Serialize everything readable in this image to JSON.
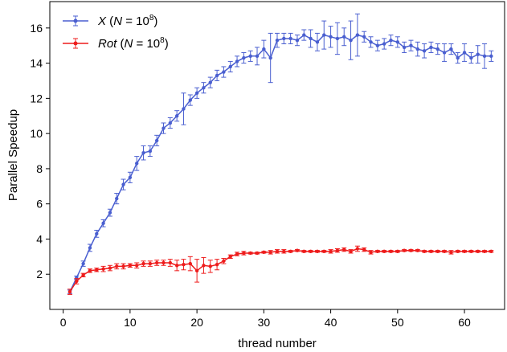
{
  "chart_data": {
    "type": "line",
    "xlabel": "thread number",
    "ylabel": "Parallel Speedup",
    "xlim": [
      -2,
      66
    ],
    "ylim": [
      0,
      17.5
    ],
    "xticks": [
      0,
      10,
      20,
      30,
      40,
      50,
      60
    ],
    "yticks": [
      2,
      4,
      6,
      8,
      10,
      12,
      14,
      16
    ],
    "grid": false,
    "legend_position": "top-left",
    "series": [
      {
        "name_parts": [
          "X",
          " (",
          "N",
          " = 10",
          "8",
          ")"
        ],
        "color": "#4a5fd0",
        "x": [
          1,
          2,
          3,
          4,
          5,
          6,
          7,
          8,
          9,
          10,
          11,
          12,
          13,
          14,
          15,
          16,
          17,
          18,
          19,
          20,
          21,
          22,
          23,
          24,
          25,
          26,
          27,
          28,
          29,
          30,
          31,
          32,
          33,
          34,
          35,
          36,
          37,
          38,
          39,
          40,
          41,
          42,
          43,
          44,
          45,
          46,
          47,
          48,
          49,
          50,
          51,
          52,
          53,
          54,
          55,
          56,
          57,
          58,
          59,
          60,
          61,
          62,
          63,
          64
        ],
        "y": [
          1.0,
          1.8,
          2.6,
          3.5,
          4.3,
          4.9,
          5.5,
          6.3,
          7.1,
          7.5,
          8.3,
          8.9,
          9.0,
          9.6,
          10.3,
          10.6,
          11.0,
          11.4,
          11.9,
          12.3,
          12.6,
          12.9,
          13.3,
          13.5,
          13.8,
          14.1,
          14.3,
          14.4,
          14.4,
          14.8,
          14.3,
          15.3,
          15.4,
          15.4,
          15.3,
          15.6,
          15.4,
          15.2,
          15.6,
          15.5,
          15.4,
          15.5,
          15.3,
          15.6,
          15.5,
          15.2,
          15.0,
          15.1,
          15.3,
          15.2,
          14.9,
          15.0,
          14.8,
          14.7,
          14.9,
          14.8,
          14.6,
          14.8,
          14.3,
          14.6,
          14.3,
          14.5,
          14.4,
          14.4
        ],
        "err": [
          0.1,
          0.1,
          0.15,
          0.2,
          0.2,
          0.2,
          0.2,
          0.3,
          0.3,
          0.3,
          0.4,
          0.4,
          0.3,
          0.3,
          0.3,
          0.3,
          0.3,
          0.9,
          0.3,
          0.3,
          0.3,
          0.3,
          0.3,
          0.3,
          0.3,
          0.3,
          0.3,
          0.3,
          0.5,
          0.5,
          1.4,
          0.4,
          0.3,
          0.3,
          0.3,
          0.3,
          0.5,
          0.5,
          0.8,
          0.6,
          0.9,
          0.5,
          1.1,
          1.2,
          0.3,
          0.3,
          0.3,
          0.3,
          0.3,
          0.3,
          0.3,
          0.3,
          0.4,
          0.4,
          0.3,
          0.3,
          0.5,
          0.3,
          0.3,
          0.5,
          0.3,
          0.5,
          0.7,
          0.3
        ]
      },
      {
        "name_parts": [
          "Rot",
          " (",
          "N",
          " = 10",
          "8",
          ")"
        ],
        "color": "#ee1c1c",
        "x": [
          1,
          2,
          3,
          4,
          5,
          6,
          7,
          8,
          9,
          10,
          11,
          12,
          13,
          14,
          15,
          16,
          17,
          18,
          19,
          20,
          21,
          22,
          23,
          24,
          25,
          26,
          27,
          28,
          29,
          30,
          31,
          32,
          33,
          34,
          35,
          36,
          37,
          38,
          39,
          40,
          41,
          42,
          43,
          44,
          45,
          46,
          47,
          48,
          49,
          50,
          51,
          52,
          53,
          54,
          55,
          56,
          57,
          58,
          59,
          60,
          61,
          62,
          63,
          64
        ],
        "y": [
          1.0,
          1.6,
          1.95,
          2.2,
          2.25,
          2.3,
          2.35,
          2.45,
          2.45,
          2.5,
          2.5,
          2.6,
          2.6,
          2.65,
          2.65,
          2.65,
          2.5,
          2.55,
          2.6,
          2.2,
          2.5,
          2.45,
          2.55,
          2.75,
          3.0,
          3.15,
          3.2,
          3.2,
          3.2,
          3.25,
          3.25,
          3.3,
          3.3,
          3.3,
          3.35,
          3.3,
          3.3,
          3.3,
          3.3,
          3.3,
          3.35,
          3.4,
          3.3,
          3.45,
          3.4,
          3.25,
          3.3,
          3.3,
          3.3,
          3.3,
          3.35,
          3.35,
          3.35,
          3.3,
          3.3,
          3.3,
          3.3,
          3.25,
          3.3,
          3.3,
          3.3,
          3.3,
          3.3,
          3.3
        ],
        "err": [
          0.15,
          0.15,
          0.1,
          0.1,
          0.1,
          0.15,
          0.15,
          0.15,
          0.15,
          0.1,
          0.15,
          0.15,
          0.15,
          0.15,
          0.15,
          0.2,
          0.3,
          0.3,
          0.4,
          0.65,
          0.45,
          0.35,
          0.3,
          0.15,
          0.1,
          0.1,
          0.1,
          0.05,
          0.05,
          0.05,
          0.1,
          0.1,
          0.1,
          0.05,
          0.05,
          0.05,
          0.05,
          0.05,
          0.05,
          0.1,
          0.1,
          0.1,
          0.1,
          0.15,
          0.1,
          0.1,
          0.05,
          0.05,
          0.05,
          0.05,
          0.05,
          0.05,
          0.05,
          0.05,
          0.05,
          0.05,
          0.05,
          0.1,
          0.05,
          0.05,
          0.05,
          0.05,
          0.05,
          0.05
        ]
      }
    ]
  }
}
